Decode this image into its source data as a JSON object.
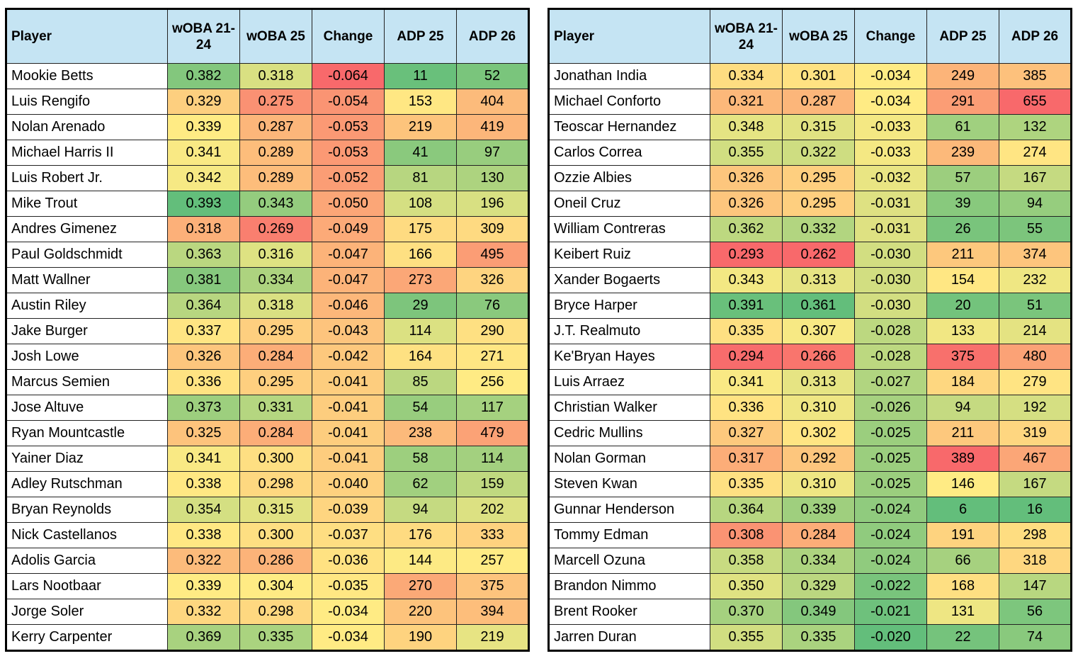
{
  "tables": [
    {
      "header": [
        "Player",
        "wOBA 21-24",
        "wOBA 25",
        "Change",
        "ADP 25",
        "ADP 26"
      ],
      "rows": [
        [
          "Mookie Betts",
          "0.382",
          "0.318",
          "-0.064",
          "11",
          "52"
        ],
        [
          "Luis Rengifo",
          "0.329",
          "0.275",
          "-0.054",
          "153",
          "404"
        ],
        [
          "Nolan Arenado",
          "0.339",
          "0.287",
          "-0.053",
          "219",
          "419"
        ],
        [
          "Michael Harris II",
          "0.341",
          "0.289",
          "-0.053",
          "41",
          "97"
        ],
        [
          "Luis Robert Jr.",
          "0.342",
          "0.289",
          "-0.052",
          "81",
          "130"
        ],
        [
          "Mike Trout",
          "0.393",
          "0.343",
          "-0.050",
          "108",
          "196"
        ],
        [
          "Andres Gimenez",
          "0.318",
          "0.269",
          "-0.049",
          "175",
          "309"
        ],
        [
          "Paul Goldschmidt",
          "0.363",
          "0.316",
          "-0.047",
          "166",
          "495"
        ],
        [
          "Matt Wallner",
          "0.381",
          "0.334",
          "-0.047",
          "273",
          "326"
        ],
        [
          "Austin Riley",
          "0.364",
          "0.318",
          "-0.046",
          "29",
          "76"
        ],
        [
          "Jake Burger",
          "0.337",
          "0.295",
          "-0.043",
          "114",
          "290"
        ],
        [
          "Josh Lowe",
          "0.326",
          "0.284",
          "-0.042",
          "164",
          "271"
        ],
        [
          "Marcus Semien",
          "0.336",
          "0.295",
          "-0.041",
          "85",
          "256"
        ],
        [
          "Jose Altuve",
          "0.373",
          "0.331",
          "-0.041",
          "54",
          "117"
        ],
        [
          "Ryan Mountcastle",
          "0.325",
          "0.284",
          "-0.041",
          "238",
          "479"
        ],
        [
          "Yainer Diaz",
          "0.341",
          "0.300",
          "-0.041",
          "58",
          "114"
        ],
        [
          "Adley Rutschman",
          "0.338",
          "0.298",
          "-0.040",
          "62",
          "159"
        ],
        [
          "Bryan Reynolds",
          "0.354",
          "0.315",
          "-0.039",
          "94",
          "202"
        ],
        [
          "Nick Castellanos",
          "0.338",
          "0.300",
          "-0.037",
          "176",
          "333"
        ],
        [
          "Adolis Garcia",
          "0.322",
          "0.286",
          "-0.036",
          "144",
          "257"
        ],
        [
          "Lars Nootbaar",
          "0.339",
          "0.304",
          "-0.035",
          "270",
          "375"
        ],
        [
          "Jorge Soler",
          "0.332",
          "0.298",
          "-0.034",
          "220",
          "394"
        ],
        [
          "Kerry Carpenter",
          "0.369",
          "0.335",
          "-0.034",
          "190",
          "219"
        ]
      ]
    },
    {
      "header": [
        "Player",
        "wOBA 21-24",
        "wOBA 25",
        "Change",
        "ADP 25",
        "ADP 26"
      ],
      "rows": [
        [
          "Jonathan India",
          "0.334",
          "0.301",
          "-0.034",
          "249",
          "385"
        ],
        [
          "Michael Conforto",
          "0.321",
          "0.287",
          "-0.034",
          "291",
          "655"
        ],
        [
          "Teoscar Hernandez",
          "0.348",
          "0.315",
          "-0.033",
          "61",
          "132"
        ],
        [
          "Carlos Correa",
          "0.355",
          "0.322",
          "-0.033",
          "239",
          "274"
        ],
        [
          "Ozzie Albies",
          "0.326",
          "0.295",
          "-0.032",
          "57",
          "167"
        ],
        [
          "Oneil Cruz",
          "0.326",
          "0.295",
          "-0.031",
          "39",
          "94"
        ],
        [
          "William Contreras",
          "0.362",
          "0.332",
          "-0.031",
          "26",
          "55"
        ],
        [
          "Keibert Ruiz",
          "0.293",
          "0.262",
          "-0.030",
          "211",
          "374"
        ],
        [
          "Xander Bogaerts",
          "0.343",
          "0.313",
          "-0.030",
          "154",
          "232"
        ],
        [
          "Bryce Harper",
          "0.391",
          "0.361",
          "-0.030",
          "20",
          "51"
        ],
        [
          "J.T. Realmuto",
          "0.335",
          "0.307",
          "-0.028",
          "133",
          "214"
        ],
        [
          "Ke'Bryan Hayes",
          "0.294",
          "0.266",
          "-0.028",
          "375",
          "480"
        ],
        [
          "Luis Arraez",
          "0.341",
          "0.313",
          "-0.027",
          "184",
          "279"
        ],
        [
          "Christian Walker",
          "0.336",
          "0.310",
          "-0.026",
          "94",
          "192"
        ],
        [
          "Cedric Mullins",
          "0.327",
          "0.302",
          "-0.025",
          "211",
          "319"
        ],
        [
          "Nolan Gorman",
          "0.317",
          "0.292",
          "-0.025",
          "389",
          "467"
        ],
        [
          "Steven Kwan",
          "0.335",
          "0.310",
          "-0.025",
          "146",
          "167"
        ],
        [
          "Gunnar Henderson",
          "0.364",
          "0.339",
          "-0.024",
          "6",
          "16"
        ],
        [
          "Tommy Edman",
          "0.308",
          "0.284",
          "-0.024",
          "191",
          "298"
        ],
        [
          "Marcell Ozuna",
          "0.358",
          "0.334",
          "-0.024",
          "66",
          "318"
        ],
        [
          "Brandon Nimmo",
          "0.350",
          "0.329",
          "-0.022",
          "168",
          "147"
        ],
        [
          "Brent Rooker",
          "0.370",
          "0.349",
          "-0.021",
          "131",
          "56"
        ],
        [
          "Jarren Duran",
          "0.355",
          "0.335",
          "-0.020",
          "22",
          "74"
        ]
      ]
    }
  ]
}
